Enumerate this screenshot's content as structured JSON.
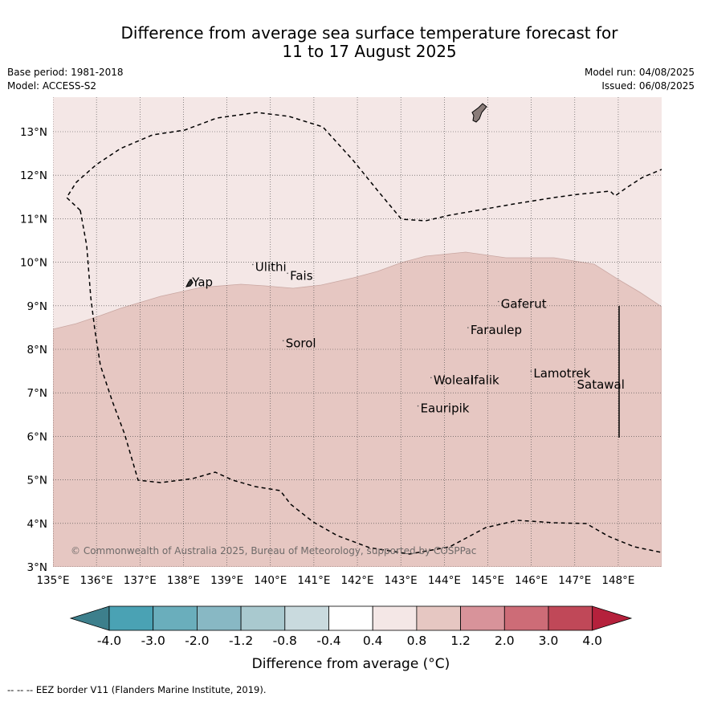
{
  "header": {
    "title_line1": "Difference from average sea surface temperature forecast for",
    "title_line2": "11 to 17 August 2025",
    "base_period": "Base period: 1981-2018",
    "model": "Model: ACCESS-S2",
    "model_run": "Model run: 04/08/2025",
    "issued": "Issued: 06/08/2025"
  },
  "map": {
    "lon_range": [
      135,
      149
    ],
    "lat_range": [
      3,
      13.8
    ],
    "lon_ticks": [
      "135°E",
      "136°E",
      "137°E",
      "138°E",
      "139°E",
      "140°E",
      "141°E",
      "142°E",
      "143°E",
      "144°E",
      "145°E",
      "146°E",
      "147°E",
      "148°E"
    ],
    "lat_ticks": [
      "3°N",
      "4°N",
      "5°N",
      "6°N",
      "7°N",
      "8°N",
      "9°N",
      "10°N",
      "11°N",
      "12°N",
      "13°N"
    ],
    "places": [
      {
        "name": "Yap",
        "lon": 138.2,
        "lat": 9.45
      },
      {
        "name": "Ulithi",
        "lon": 139.65,
        "lat": 9.8
      },
      {
        "name": "Fais",
        "lon": 140.45,
        "lat": 9.6
      },
      {
        "name": "Gaferut",
        "lon": 145.3,
        "lat": 8.95
      },
      {
        "name": "Faraulep",
        "lon": 144.6,
        "lat": 8.35
      },
      {
        "name": "Sorol",
        "lon": 140.35,
        "lat": 8.05
      },
      {
        "name": "Lamotrek",
        "lon": 146.05,
        "lat": 7.35
      },
      {
        "name": "Woleai",
        "lon": 143.75,
        "lat": 7.2
      },
      {
        "name": "Ifalik",
        "lon": 144.6,
        "lat": 7.2
      },
      {
        "name": "Satawal",
        "lon": 147.05,
        "lat": 7.1
      },
      {
        "name": "Eauripik",
        "lon": 143.45,
        "lat": 6.55
      }
    ],
    "copyright": "© Commonwealth of Australia 2025, Bureau of Meteorology, supported by COSPPac",
    "colors": {
      "band_0.4_0.8": "#f4e7e6",
      "band_0.8_1.2": "#e6c7c2",
      "boundary_stroke": "#c9a7a2",
      "land": "#8a7c79"
    }
  },
  "colorbar": {
    "ticks": [
      "-4.0",
      "-3.0",
      "-2.0",
      "-1.2",
      "-0.8",
      "-0.4",
      "0.4",
      "0.8",
      "1.2",
      "2.0",
      "3.0",
      "4.0"
    ],
    "colors": [
      "#3d7f8c",
      "#4aa2b4",
      "#6aaebc",
      "#88b8c4",
      "#a9c9cf",
      "#c9dade",
      "#ffffff",
      "#f4e7e6",
      "#e6c7c2",
      "#d8939a",
      "#cd6c77",
      "#c04858",
      "#b5213c"
    ],
    "title": "Difference from average (°C)"
  },
  "footnote": "--  --  -- EEZ border V11 (Flanders Marine Institute, 2019)."
}
